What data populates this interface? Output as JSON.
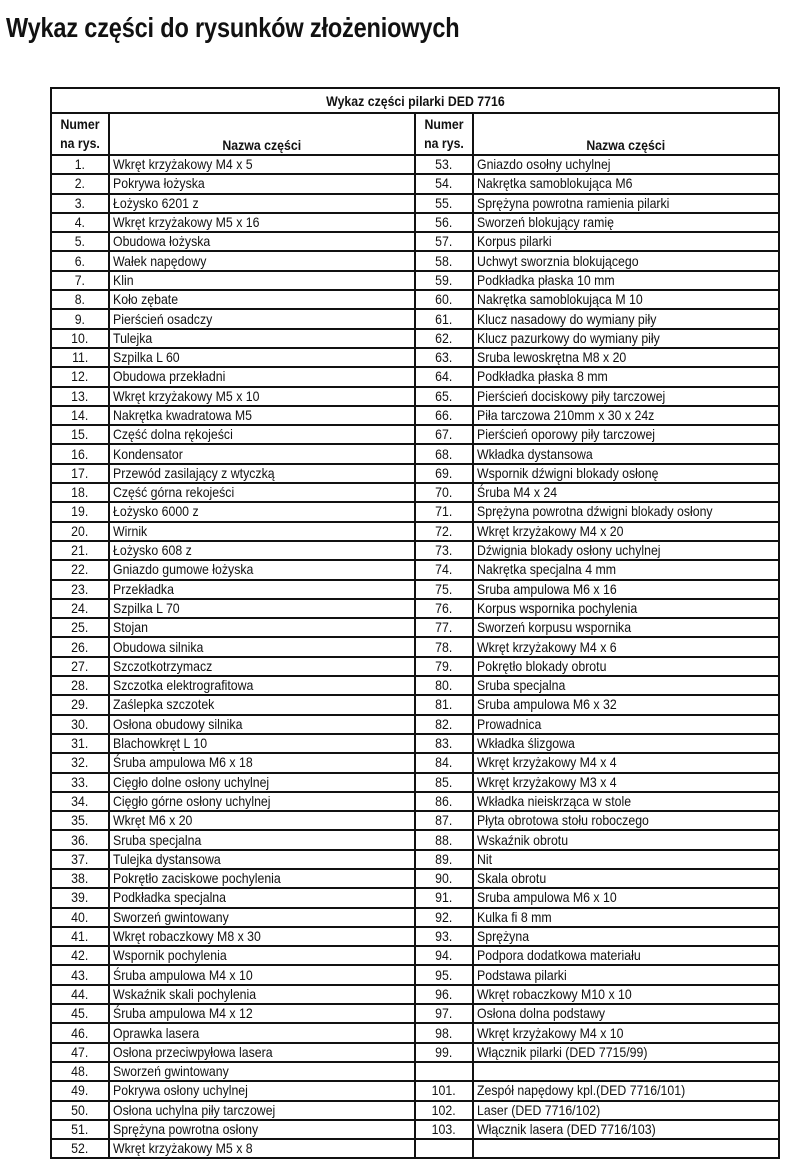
{
  "title": "Wykaz części do rysunków złożeniowych",
  "table": {
    "caption": "Wykaz części pilarki DED 7716",
    "headers": {
      "number": "Numer na rys.",
      "name": "Nazwa części"
    },
    "rows": [
      [
        "1.",
        "Wkręt krzyżakowy M4 x 5",
        "53.",
        "Gniazdo osołny uchylnej"
      ],
      [
        "2.",
        "Pokrywa łożyska",
        "54.",
        "Nakrętka samoblokująca M6"
      ],
      [
        "3.",
        "Łożysko 6201 z",
        "55.",
        "Sprężyna powrotna ramienia pilarki"
      ],
      [
        "4.",
        "Wkręt krzyżakowy M5 x 16",
        "56.",
        "Sworzeń blokujący ramię"
      ],
      [
        "5.",
        "Obudowa łożyska",
        "57.",
        "Korpus pilarki"
      ],
      [
        "6.",
        "Wałek napędowy",
        "58.",
        "Uchwyt sworznia blokującego"
      ],
      [
        "7.",
        "Klin",
        "59.",
        "Podkładka płaska 10 mm"
      ],
      [
        "8.",
        "Koło zębate",
        "60.",
        "Nakrętka samoblokująca M 10"
      ],
      [
        "9.",
        "Pierścień osadczy",
        "61.",
        "Klucz nasadowy do wymiany piły"
      ],
      [
        "10.",
        "Tulejka",
        "62.",
        "Klucz pazurkowy do wymiany piły"
      ],
      [
        "11.",
        "Szpilka L 60",
        "63.",
        "Sruba lewoskrętna M8 x 20"
      ],
      [
        "12.",
        "Obudowa przekładni",
        "64.",
        "Podkładka płaska 8 mm"
      ],
      [
        "13.",
        "Wkręt krzyżakowy M5 x 10",
        "65.",
        "Pierścień dociskowy piły tarczowej"
      ],
      [
        "14.",
        "Nakrętka kwadratowa M5",
        "66.",
        "Piła tarczowa  210mm x 30 x 24z"
      ],
      [
        "15.",
        "Część dolna rękojeści",
        "67.",
        "Pierścień oporowy piły tarczowej"
      ],
      [
        "16.",
        "Kondensator",
        "68.",
        "Wkładka dystansowa"
      ],
      [
        "17.",
        "Przewód zasilający z wtyczką",
        "69.",
        "Wspornik dźwigni blokady osłonę"
      ],
      [
        "18.",
        "Część górna rekojeści",
        "70.",
        "Śruba M4 x 24"
      ],
      [
        "19.",
        "Łożysko 6000 z",
        "71.",
        "Sprężyna powrotna dźwigni blokady osłony"
      ],
      [
        "20.",
        "Wirnik",
        "72.",
        "Wkręt krzyżakowy M4 x 20"
      ],
      [
        "21.",
        "Łożysko 608 z",
        "73.",
        "Dźwignia blokady osłony uchylnej"
      ],
      [
        "22.",
        "Gniazdo gumowe łożyska",
        "74.",
        "Nakrętka specjalna 4 mm"
      ],
      [
        "23.",
        "Przekładka",
        "75.",
        "Sruba ampulowa M6 x 16"
      ],
      [
        "24.",
        "Szpilka L 70",
        "76.",
        "Korpus wspornika pochylenia"
      ],
      [
        "25.",
        "Stojan",
        "77.",
        "Sworzeń korpusu wspornika"
      ],
      [
        "26.",
        "Obudowa silnika",
        "78.",
        "Wkręt krzyżakowy M4 x 6"
      ],
      [
        "27.",
        "Szczotkotrzymacz",
        "79.",
        "Pokrętło blokady obrotu"
      ],
      [
        "28.",
        "Szczotka elektrografitowa",
        "80.",
        "Sruba specjalna"
      ],
      [
        "29.",
        "Zaślepka szczotek",
        "81.",
        "Sruba ampulowa M6 x 32"
      ],
      [
        "30.",
        "Osłona obudowy silnika",
        "82.",
        "Prowadnica"
      ],
      [
        "31.",
        "Blachowkręt L 10",
        "83.",
        "Wkładka ślizgowa"
      ],
      [
        "32.",
        "Śruba ampulowa M6 x 18",
        "84.",
        "Wkręt krzyżakowy M4 x 4"
      ],
      [
        "33.",
        "Cięgło dolne osłony uchylnej",
        "85.",
        "Wkręt krzyżakowy M3 x 4"
      ],
      [
        "34.",
        "Cięgło górne osłony uchylnej",
        "86.",
        "Wkładka nieiskrząca w stole"
      ],
      [
        "35.",
        "Wkręt M6 x 20",
        "87.",
        "Płyta obrotowa stołu roboczego"
      ],
      [
        "36.",
        "Sruba specjalna",
        "88.",
        "Wskaźnik obrotu"
      ],
      [
        "37.",
        "Tulejka dystansowa",
        "89.",
        "Nit"
      ],
      [
        "38.",
        "Pokrętło zaciskowe pochylenia",
        "90.",
        "Skala obrotu"
      ],
      [
        "39.",
        "Podkładka specjalna",
        "91.",
        "Sruba ampulowa M6 x 10"
      ],
      [
        "40.",
        "Sworzeń gwintowany",
        "92.",
        "Kulka fi 8 mm"
      ],
      [
        "41.",
        "Wkręt robaczkowy M8 x 30",
        "93.",
        "Sprężyna"
      ],
      [
        "42.",
        "Wspornik pochylenia",
        "94.",
        "Podpora dodatkowa materiału"
      ],
      [
        "43.",
        "Śruba ampulowa M4 x 10",
        "95.",
        "Podstawa pilarki"
      ],
      [
        "44.",
        "Wskaźnik skali pochylenia",
        "96.",
        "Wkręt robaczkowy M10 x 10"
      ],
      [
        "45.",
        "Śruba ampulowa M4 x 12",
        "97.",
        "Osłona dolna podstawy"
      ],
      [
        "46.",
        "Oprawka lasera",
        "98.",
        "Wkręt krzyżakowy M4 x 10"
      ],
      [
        "47.",
        "Osłona przeciwpyłowa lasera",
        "99.",
        "Włącznik pilarki (DED 7715/99)"
      ],
      [
        "48.",
        "Sworzeń gwintowany",
        "",
        ""
      ],
      [
        "49.",
        "Pokrywa osłony uchylnej",
        "101.",
        "Zespół napędowy kpl.(DED 7716/101)"
      ],
      [
        "50.",
        "Osłona uchylna piły tarczowej",
        "102.",
        "Laser (DED 7716/102)"
      ],
      [
        "51.",
        "Sprężyna powrotna osłony",
        "103.",
        "Włącznik lasera (DED 7716/103)"
      ],
      [
        "52.",
        "Wkręt krzyżakowy M5 x 8",
        "",
        ""
      ]
    ]
  }
}
